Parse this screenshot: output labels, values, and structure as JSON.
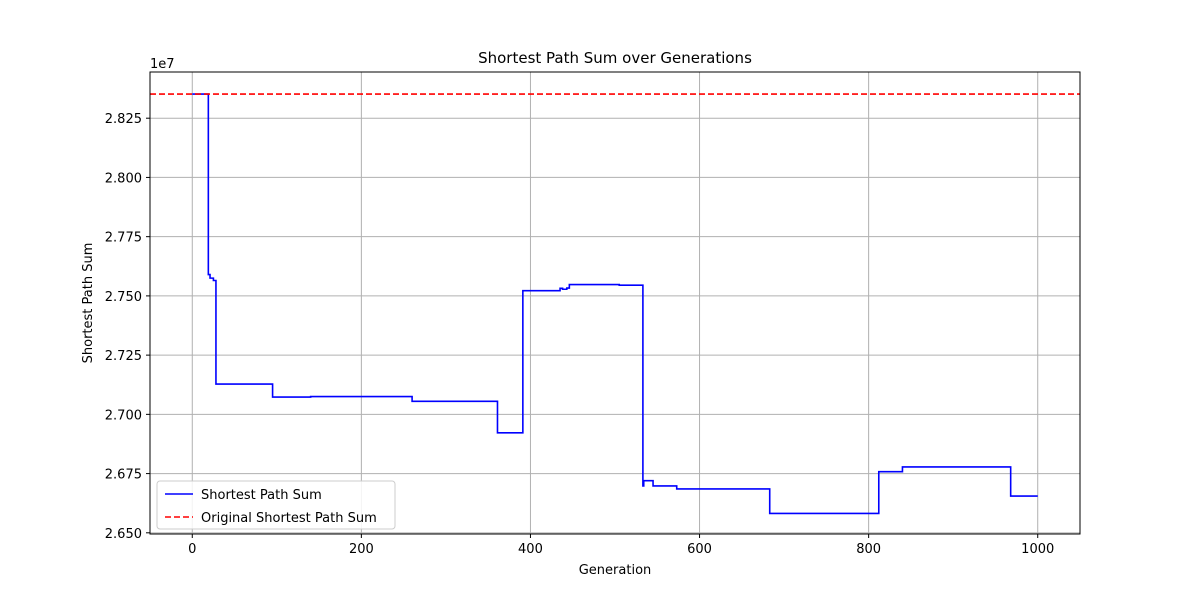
{
  "chart_data": {
    "type": "line",
    "title": "Shortest Path Sum over Generations",
    "xlabel": "Generation",
    "ylabel": "Shortest Path Sum",
    "y_offset_label": "1e7",
    "xlim": [
      -50,
      1050
    ],
    "ylim": [
      2.6495,
      2.8445
    ],
    "xticks": [
      0,
      200,
      400,
      600,
      800,
      1000
    ],
    "xtick_labels": [
      "0",
      "200",
      "400",
      "600",
      "800",
      "1000"
    ],
    "yticks": [
      2.65,
      2.675,
      2.7,
      2.725,
      2.75,
      2.775,
      2.8,
      2.825
    ],
    "ytick_labels": [
      "2.650",
      "2.675",
      "2.700",
      "2.725",
      "2.750",
      "2.775",
      "2.800",
      "2.825"
    ],
    "grid": true,
    "legend_position": "lower-left",
    "series": [
      {
        "name": "Shortest Path Sum",
        "color": "#0000ff",
        "style": "solid",
        "x": [
          0,
          19,
          19,
          21,
          21,
          25,
          25,
          28,
          28,
          95,
          95,
          140,
          140,
          260,
          260,
          361,
          361,
          391,
          391,
          435,
          435,
          438,
          438,
          443,
          443,
          446,
          446,
          505,
          505,
          533,
          533,
          534,
          534,
          545,
          545,
          573,
          573,
          683,
          683,
          812,
          812,
          840,
          840,
          968,
          968,
          1000
        ],
        "y": [
          2.8352,
          2.8352,
          2.759,
          2.759,
          2.7575,
          2.7575,
          2.7565,
          2.7565,
          2.7128,
          2.7128,
          2.7073,
          2.7073,
          2.7075,
          2.7075,
          2.7055,
          2.7055,
          2.6922,
          2.6922,
          2.7522,
          2.7522,
          2.7532,
          2.7532,
          2.7528,
          2.7528,
          2.7533,
          2.7533,
          2.7548,
          2.7548,
          2.7545,
          2.7545,
          2.6698,
          2.6698,
          2.672,
          2.672,
          2.6698,
          2.6698,
          2.6685,
          2.6685,
          2.6582,
          2.6582,
          2.6758,
          2.6758,
          2.6778,
          2.6778,
          2.6655,
          2.6655
        ]
      },
      {
        "name": "Original Shortest Path Sum",
        "color": "#ff0000",
        "style": "dashed",
        "hline": 2.8352
      }
    ]
  }
}
